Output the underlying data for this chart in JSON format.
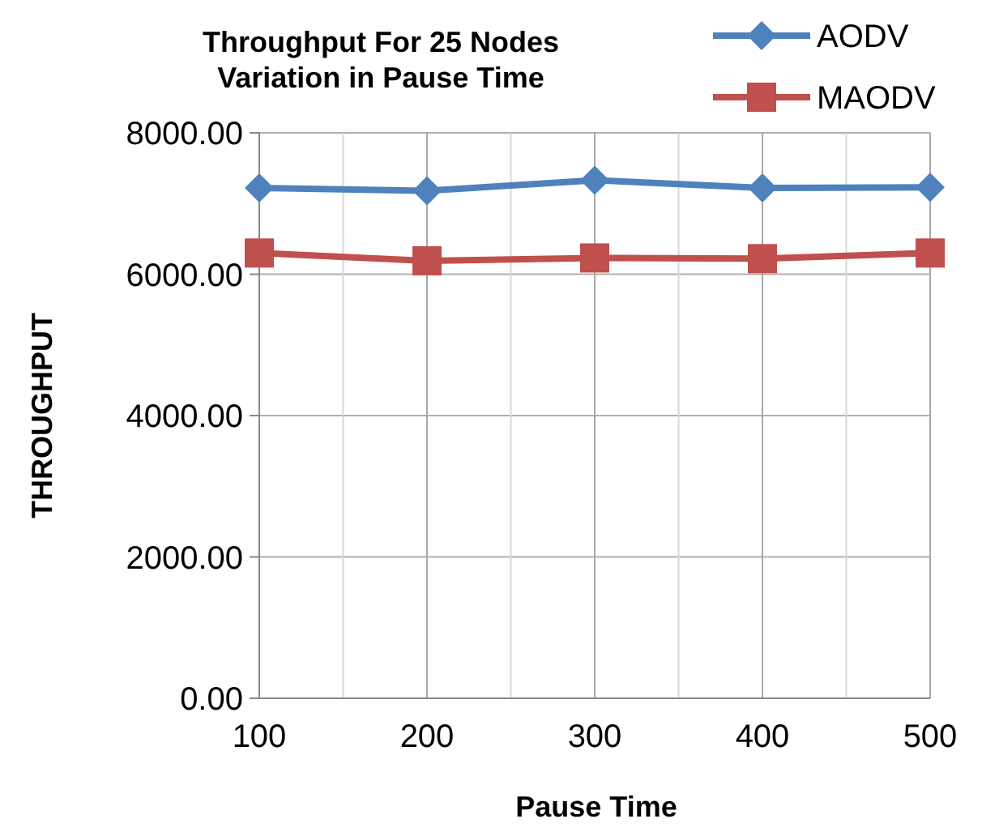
{
  "chart_data": {
    "type": "line",
    "title": "Throughput For 25 Nodes\nVariation in Pause Time",
    "xlabel": "Pause Time",
    "ylabel": "THROUGHPUT",
    "x": [
      100,
      200,
      300,
      400,
      500
    ],
    "series": [
      {
        "name": "AODV",
        "color": "#4f81bd",
        "marker": "diamond",
        "values": [
          7220,
          7180,
          7330,
          7220,
          7230
        ]
      },
      {
        "name": "MAODV",
        "color": "#c0504d",
        "marker": "square",
        "values": [
          6300,
          6190,
          6230,
          6220,
          6300
        ]
      }
    ],
    "xlim": [
      100,
      500
    ],
    "xticks": [
      100,
      {
        "value": 150,
        "label": null
      },
      200,
      {
        "value": 250,
        "label": null
      },
      300,
      {
        "value": 350,
        "label": null
      },
      400,
      {
        "value": 450,
        "label": null
      },
      500
    ],
    "ylim": [
      0,
      8000
    ],
    "yticks": [
      {
        "value": 0,
        "label": "0.00"
      },
      {
        "value": 2000,
        "label": "2000.00"
      },
      {
        "value": 4000,
        "label": "4000.00"
      },
      {
        "value": 6000,
        "label": "6000.00"
      },
      {
        "value": 8000,
        "label": "8000.00"
      }
    ],
    "grid": true,
    "legend": "top right"
  }
}
